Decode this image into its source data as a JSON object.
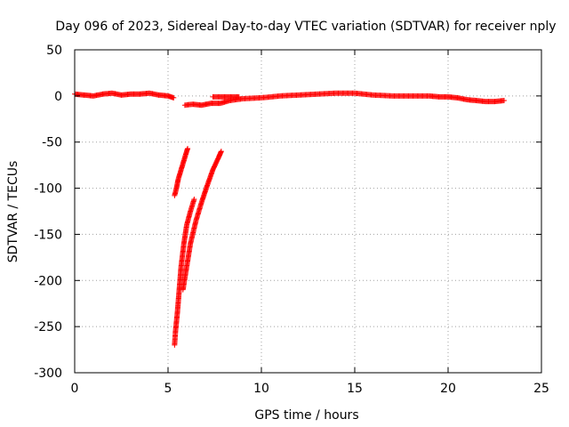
{
  "chart_data": {
    "type": "scatter",
    "title": "Day 096 of 2023, Sidereal Day-to-day VTEC variation (SDTVAR) for receiver nply",
    "xlabel": "GPS time / hours",
    "ylabel": "SDTVAR / TECUs",
    "xlim": [
      0,
      25
    ],
    "ylim": [
      -300,
      50
    ],
    "xticks": [
      0,
      5,
      10,
      15,
      20,
      25
    ],
    "yticks": [
      -300,
      -250,
      -200,
      -150,
      -100,
      -50,
      0,
      50
    ],
    "grid": true,
    "marker": "+",
    "color": "#ff0000",
    "series": [
      {
        "x": [
          0.0,
          0.5,
          1.0,
          1.5,
          2.0,
          2.5,
          3.0,
          3.5,
          4.0,
          4.5,
          5.0,
          5.3
        ],
        "y": [
          2,
          1,
          0,
          2,
          3,
          1,
          2,
          2,
          3,
          1,
          0,
          -2
        ]
      },
      {
        "x": [
          5.9,
          6.3,
          6.8,
          7.3,
          7.8,
          8.3,
          9.0,
          10.0,
          11.0,
          12.0,
          13.0,
          14.0,
          15.0,
          16.0,
          17.0,
          18.0,
          19.0,
          19.5,
          20.0,
          20.5,
          21.0,
          21.5,
          22.0,
          22.5,
          23.0
        ],
        "y": [
          -10,
          -9,
          -10,
          -8,
          -8,
          -5,
          -3,
          -2,
          0,
          1,
          2,
          3,
          3,
          1,
          0,
          0,
          0,
          -1,
          -1,
          -2,
          -4,
          -5,
          -6,
          -6,
          -5
        ]
      },
      {
        "x": [
          7.4,
          7.8,
          8.3,
          8.8
        ],
        "y": [
          -1,
          -1,
          -1,
          -1
        ]
      },
      {
        "x": [
          5.35,
          5.45,
          5.55,
          5.7,
          5.85,
          6.0,
          6.05
        ],
        "y": [
          -108,
          -100,
          -90,
          -80,
          -70,
          -60,
          -57
        ]
      },
      {
        "x": [
          5.35,
          5.4,
          5.5,
          5.6,
          5.7,
          5.85,
          6.0,
          6.2,
          6.4
        ],
        "y": [
          -270,
          -255,
          -235,
          -210,
          -185,
          -160,
          -140,
          -125,
          -112
        ]
      },
      {
        "x": [
          5.8,
          6.0,
          6.2,
          6.5,
          6.8,
          7.1,
          7.4,
          7.7,
          7.85
        ],
        "y": [
          -210,
          -185,
          -160,
          -135,
          -115,
          -97,
          -80,
          -67,
          -60
        ]
      }
    ]
  }
}
